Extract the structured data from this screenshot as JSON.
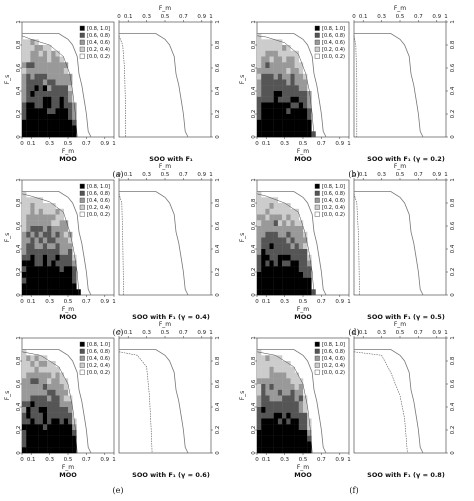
{
  "chart_data": {
    "type": "area",
    "legend_placement": "top-right",
    "colors": {
      "bins": [
        "#ffffff",
        "#cccccc",
        "#999999",
        "#555555",
        "#000000"
      ],
      "curve": "#777777",
      "soo_curve": "#555555"
    },
    "bins": [
      "[0.8, 1.0]",
      "[0.6, 0.8)",
      "[0.4, 0.6)",
      "[0.2, 0.4)",
      "[0.0, 0.2)"
    ],
    "x_ticks": [
      "0",
      "0.1",
      "0.3",
      "0.5",
      "0.7",
      "0.9",
      "1"
    ],
    "y_ticks": [
      "0",
      "0.2",
      "0.4",
      "0.6",
      "0.8",
      "1"
    ],
    "xlabel": "F_m",
    "ylabel": "F_s",
    "xlim": [
      0,
      1
    ],
    "ylim": [
      0,
      1
    ],
    "reference_curve": [
      [
        0,
        0.9
      ],
      [
        0.4,
        0.9
      ],
      [
        0.5,
        0.85
      ],
      [
        0.55,
        0.8
      ],
      [
        0.6,
        0.7
      ],
      [
        0.62,
        0.55
      ],
      [
        0.65,
        0.45
      ],
      [
        0.68,
        0.3
      ],
      [
        0.7,
        0.2
      ],
      [
        0.72,
        0.05
      ],
      [
        0.75,
        0
      ]
    ],
    "subplots": [
      {
        "label": "(a)",
        "moo_title": "MOO",
        "soo_title": "SOO with  F₁",
        "moo_front": [
          [
            0,
            0.88
          ],
          [
            0.1,
            0.85
          ],
          [
            0.3,
            0.8
          ],
          [
            0.45,
            0.7
          ],
          [
            0.52,
            0.55
          ],
          [
            0.55,
            0.4
          ],
          [
            0.58,
            0.2
          ],
          [
            0.6,
            0
          ]
        ],
        "soo_curve": [
          [
            0,
            0.88
          ],
          [
            0.04,
            0.8
          ],
          [
            0.06,
            0.6
          ],
          [
            0.07,
            0.3
          ],
          [
            0.07,
            0
          ]
        ]
      },
      {
        "label": "(b)",
        "moo_title": "MOO",
        "soo_title": "SOO with  F₁ (γ = 0.2)",
        "moo_front": [
          [
            0,
            0.88
          ],
          [
            0.1,
            0.87
          ],
          [
            0.3,
            0.82
          ],
          [
            0.45,
            0.72
          ],
          [
            0.53,
            0.55
          ],
          [
            0.57,
            0.4
          ],
          [
            0.6,
            0.2
          ],
          [
            0.62,
            0
          ]
        ],
        "soo_curve": [
          [
            0,
            0.88
          ],
          [
            0.02,
            0.8
          ],
          [
            0.03,
            0.5
          ],
          [
            0.03,
            0
          ]
        ]
      },
      {
        "label": "(c)",
        "moo_title": "MOO",
        "soo_title": "SOO with  F₁ (γ = 0.4)",
        "moo_front": [
          [
            0,
            0.88
          ],
          [
            0.1,
            0.86
          ],
          [
            0.3,
            0.81
          ],
          [
            0.45,
            0.72
          ],
          [
            0.52,
            0.55
          ],
          [
            0.56,
            0.4
          ],
          [
            0.6,
            0.2
          ],
          [
            0.62,
            0
          ]
        ],
        "soo_curve": [
          [
            0,
            0.88
          ],
          [
            0.03,
            0.8
          ],
          [
            0.04,
            0.5
          ],
          [
            0.05,
            0
          ]
        ]
      },
      {
        "label": "(d)",
        "moo_title": "MOO",
        "soo_title": "SOO with  F₁ (γ = 0.5)",
        "moo_front": [
          [
            0,
            0.88
          ],
          [
            0.1,
            0.86
          ],
          [
            0.3,
            0.8
          ],
          [
            0.45,
            0.72
          ],
          [
            0.52,
            0.55
          ],
          [
            0.56,
            0.4
          ],
          [
            0.6,
            0.2
          ],
          [
            0.62,
            0
          ]
        ],
        "soo_curve": [
          [
            0,
            0.88
          ],
          [
            0.03,
            0.8
          ],
          [
            0.05,
            0.5
          ],
          [
            0.06,
            0
          ]
        ]
      },
      {
        "label": "(e)",
        "moo_title": "MOO",
        "soo_title": "SOO with  F₁ (γ = 0.6)",
        "moo_front": [
          [
            0,
            0.88
          ],
          [
            0.2,
            0.85
          ],
          [
            0.4,
            0.75
          ],
          [
            0.5,
            0.6
          ],
          [
            0.55,
            0.4
          ],
          [
            0.58,
            0.2
          ],
          [
            0.6,
            0
          ]
        ],
        "soo_curve": [
          [
            0,
            0.88
          ],
          [
            0.2,
            0.85
          ],
          [
            0.3,
            0.75
          ],
          [
            0.33,
            0.5
          ],
          [
            0.35,
            0.2
          ],
          [
            0.36,
            0
          ]
        ]
      },
      {
        "label": "(f)",
        "moo_title": "MOO",
        "soo_title": "SOO with  F₁ (γ = 0.8)",
        "moo_front": [
          [
            0,
            0.88
          ],
          [
            0.2,
            0.85
          ],
          [
            0.4,
            0.75
          ],
          [
            0.5,
            0.6
          ],
          [
            0.55,
            0.4
          ],
          [
            0.58,
            0.2
          ],
          [
            0.6,
            0
          ]
        ],
        "soo_curve": [
          [
            0,
            0.88
          ],
          [
            0.3,
            0.85
          ],
          [
            0.4,
            0.7
          ],
          [
            0.5,
            0.5
          ],
          [
            0.55,
            0.3
          ],
          [
            0.58,
            0
          ]
        ]
      }
    ]
  }
}
